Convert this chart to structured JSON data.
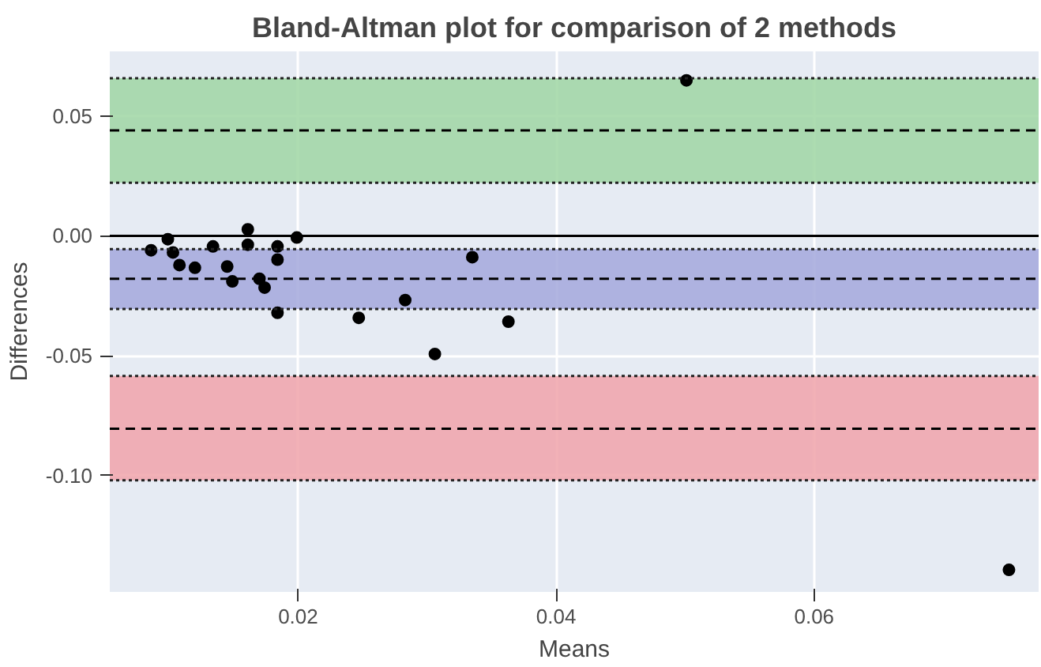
{
  "chart_data": {
    "type": "scatter",
    "title": "Bland-Altman plot for comparison of 2 methods",
    "xlabel": "Means",
    "ylabel": "Differences",
    "x": [
      0.0086,
      0.0099,
      0.0103,
      0.0108,
      0.012,
      0.0134,
      0.0145,
      0.0149,
      0.0161,
      0.0161,
      0.017,
      0.0174,
      0.0184,
      0.0184,
      0.0184,
      0.0199,
      0.0247,
      0.0283,
      0.0306,
      0.0335,
      0.0363,
      0.0501,
      0.0751
    ],
    "series": [
      {
        "color": "#000000",
        "values": [
          -0.006,
          -0.0014,
          -0.0069,
          -0.0122,
          -0.0133,
          -0.0044,
          -0.0128,
          -0.019,
          0.0027,
          -0.0037,
          -0.0179,
          -0.0216,
          -0.0044,
          -0.0099,
          -0.0321,
          -0.0007,
          -0.0342,
          -0.0268,
          -0.0493,
          -0.0089,
          -0.0358,
          0.0649,
          -0.1394
        ]
      }
    ],
    "xlim": [
      0.0054,
      0.0774
    ],
    "ylim": [
      -0.1486,
      0.077
    ],
    "xticks": [
      0.02,
      0.04,
      0.06
    ],
    "yticks": [
      {
        "value": -0.1,
        "label": "-0.10"
      },
      -0.05,
      {
        "value": 0.0,
        "label": "0.00"
      },
      0.05
    ],
    "bands": [
      {
        "axis": "y",
        "from": 0.0222,
        "to": 0.0658,
        "color": "#9fd6a3"
      },
      {
        "axis": "y",
        "from": -0.0305,
        "to": -0.0055,
        "color": "#a3a8dc"
      },
      {
        "axis": "y",
        "from": -0.102,
        "to": -0.0585,
        "color": "#f0a3aa"
      }
    ],
    "ref_lines": [
      {
        "axis": "y",
        "value": 0.0,
        "line_style": "solid",
        "color": "#000000"
      },
      {
        "axis": "y",
        "value": 0.044,
        "line_style": "dashed",
        "color": "#000000"
      },
      {
        "axis": "y",
        "value": -0.0179,
        "line_style": "dashed",
        "color": "#000000"
      },
      {
        "axis": "y",
        "value": -0.0805,
        "line_style": "dashed",
        "color": "#000000"
      }
    ],
    "grid": true,
    "marker": "circle"
  }
}
